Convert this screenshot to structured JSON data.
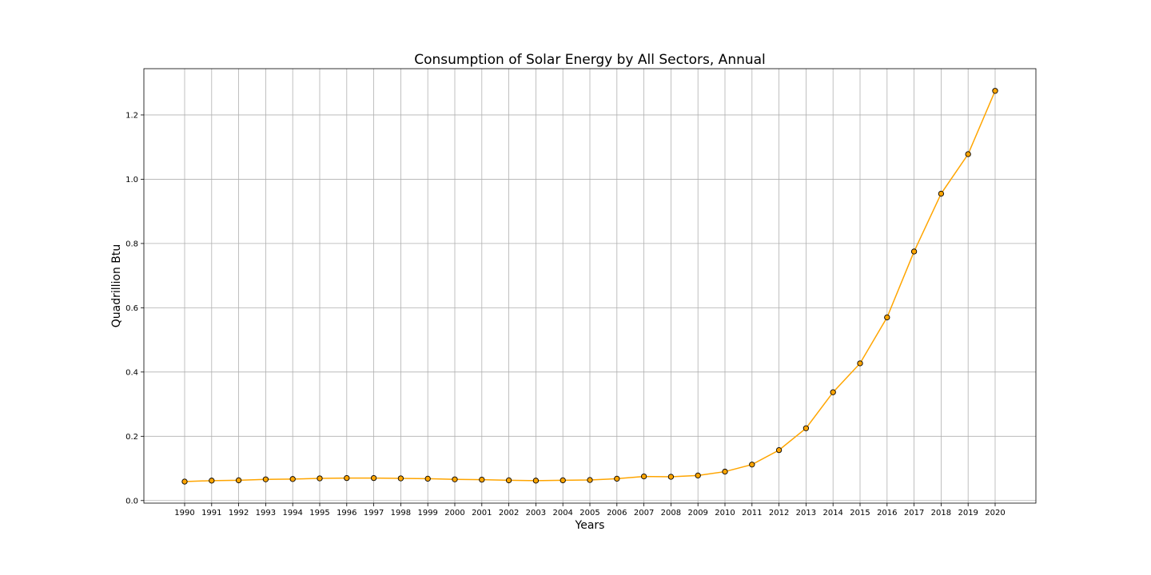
{
  "chart_data": {
    "type": "line",
    "title": "Consumption of Solar Energy by All Sectors, Annual",
    "xlabel": "Years",
    "ylabel": "Quadrillion Btu",
    "x": [
      "1990",
      "1991",
      "1992",
      "1993",
      "1994",
      "1995",
      "1996",
      "1997",
      "1998",
      "1999",
      "2000",
      "2001",
      "2002",
      "2003",
      "2004",
      "2005",
      "2006",
      "2007",
      "2008",
      "2009",
      "2010",
      "2011",
      "2012",
      "2013",
      "2014",
      "2015",
      "2016",
      "2017",
      "2018",
      "2019",
      "2020"
    ],
    "series": [
      {
        "values": [
          0.059,
          0.062,
          0.063,
          0.066,
          0.067,
          0.069,
          0.07,
          0.07,
          0.069,
          0.068,
          0.066,
          0.065,
          0.063,
          0.062,
          0.063,
          0.064,
          0.068,
          0.075,
          0.074,
          0.078,
          0.09,
          0.112,
          0.157,
          0.225,
          0.337,
          0.427,
          0.57,
          0.775,
          0.955,
          1.078,
          1.275
        ],
        "color": "#ffa500",
        "marker_edge_color": "#000000"
      }
    ],
    "ylim": [
      -0.008,
      1.344
    ],
    "yticks": [
      0.0,
      0.2,
      0.4,
      0.6,
      0.8,
      1.0,
      1.2
    ],
    "ytick_labels": [
      "0.0",
      "0.2",
      "0.4",
      "0.6",
      "0.8",
      "1.0",
      "1.2"
    ],
    "grid": true,
    "legend": "none"
  }
}
